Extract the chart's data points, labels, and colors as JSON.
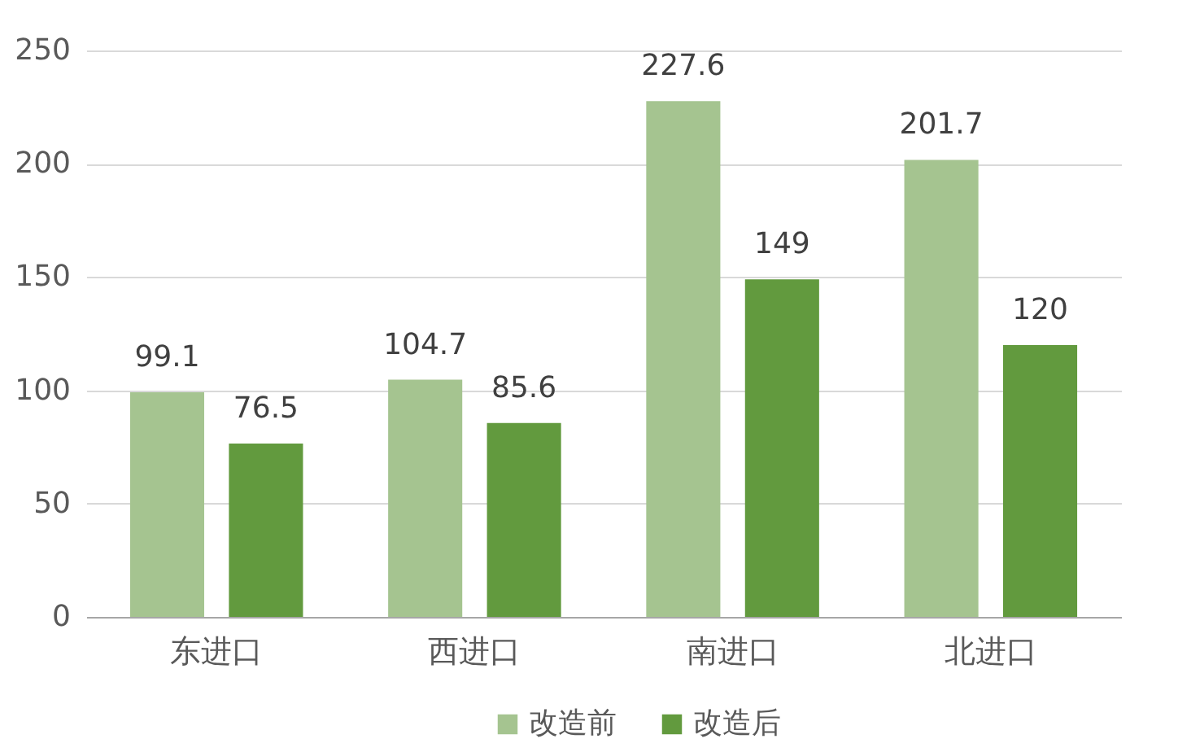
{
  "chart_data": {
    "type": "bar",
    "categories": [
      "东进口",
      "西进口",
      "南进口",
      "北进口"
    ],
    "series": [
      {
        "name": "改造前",
        "color": "#a5c490",
        "values": [
          99.1,
          104.7,
          227.6,
          201.7
        ]
      },
      {
        "name": "改造后",
        "color": "#629a3e",
        "values": [
          76.5,
          85.6,
          149,
          120
        ]
      }
    ],
    "ylim": [
      0,
      250
    ],
    "yticks": [
      0,
      50,
      100,
      150,
      200,
      250
    ],
    "grid": "y",
    "legend": "bottom",
    "data_labels": true
  }
}
